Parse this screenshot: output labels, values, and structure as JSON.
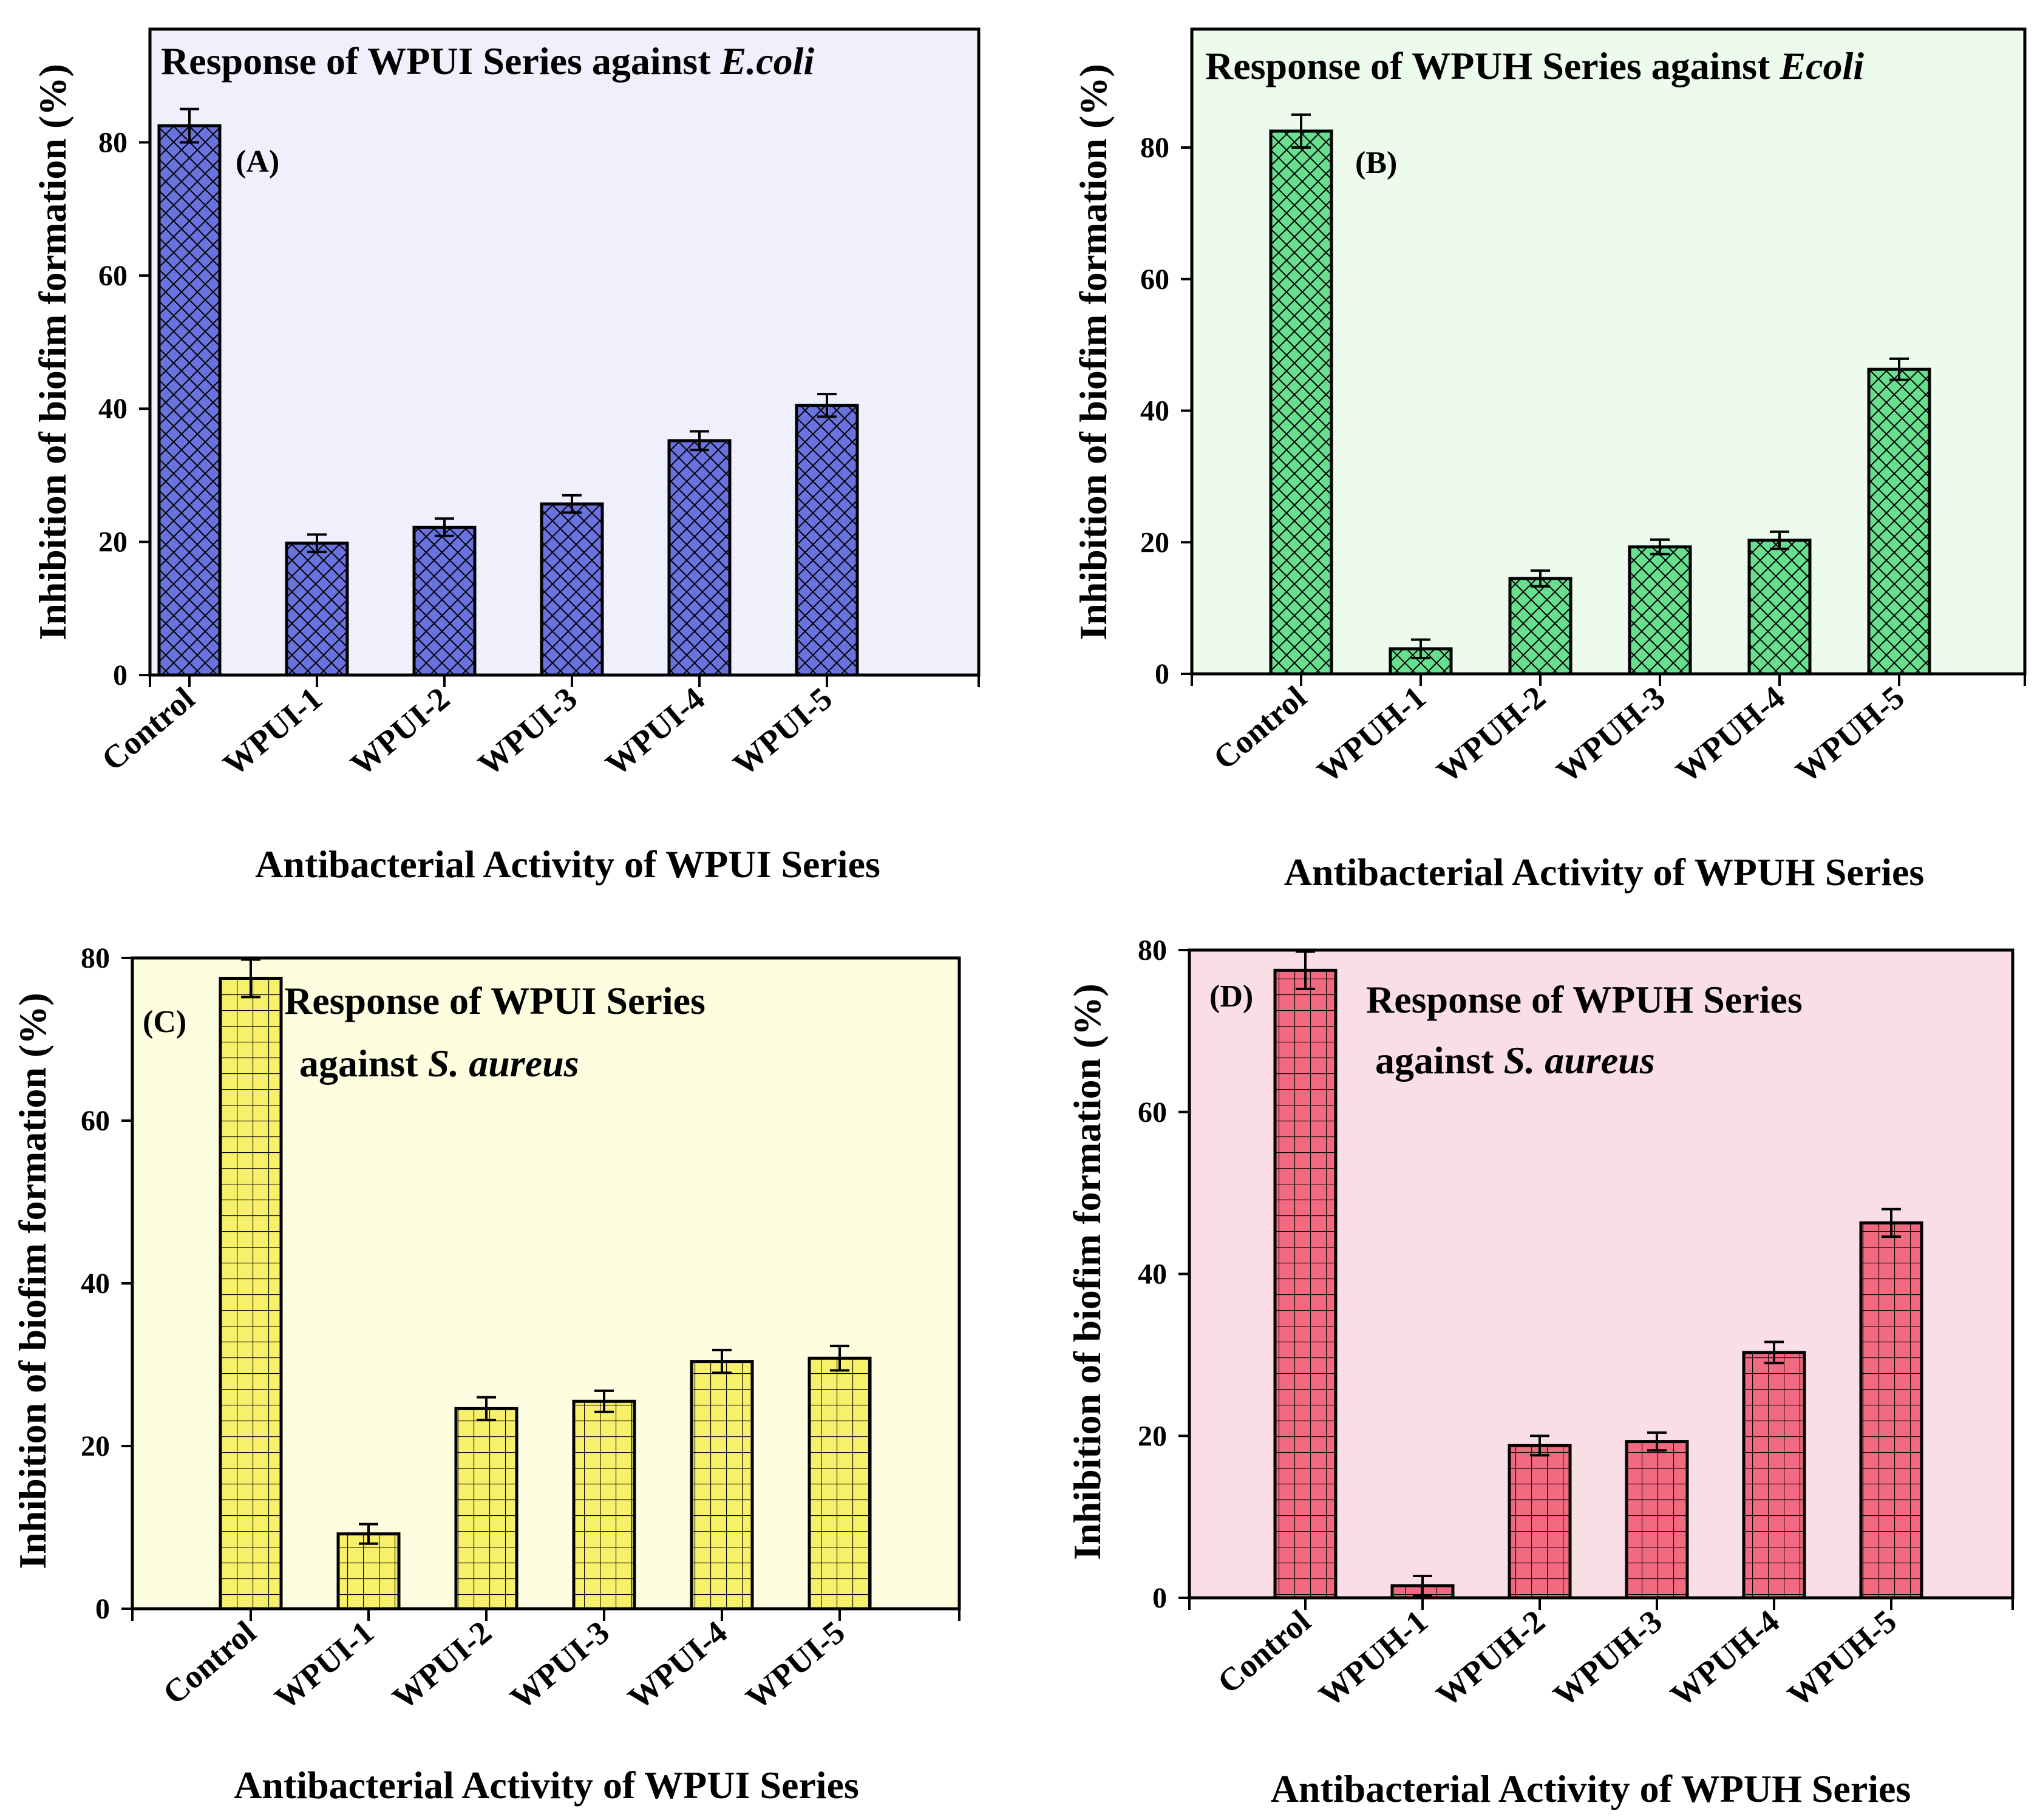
{
  "chart_data": [
    {
      "type": "bar",
      "panel": "(A)",
      "title": "Response of WPUI Series against ",
      "title_italic": "E.coli",
      "xlabel": "Antibacterial Activity of WPUI Series",
      "ylabel": "Inhibition of biofim formation (%)",
      "categories": [
        "Control",
        "WPUI-1",
        "WPUI-2",
        "WPUI-3",
        "WPUI-4",
        "WPUI-5"
      ],
      "values": [
        82.5,
        19.8,
        22.2,
        25.7,
        35.2,
        40.5
      ],
      "errors": [
        2.5,
        1.3,
        1.3,
        1.3,
        1.4,
        1.7
      ],
      "yticks": [
        0,
        20,
        40,
        60,
        80
      ],
      "ylim": [
        0,
        97
      ],
      "bar_color": "#6a72dd",
      "bg_color": "#f0f0fc",
      "pattern": "crosshatch"
    },
    {
      "type": "bar",
      "panel": "(B)",
      "title": "Response of WPUH Series against ",
      "title_italic": "Ecoli",
      "xlabel": "Antibacterial Activity of WPUH Series",
      "ylabel": "Inhibition of biofim formation (%)",
      "categories": [
        "Control",
        "WPUH-1",
        "WPUH-2",
        "WPUH-3",
        "WPUH-4",
        "WPUH-5"
      ],
      "values": [
        82.5,
        3.8,
        14.5,
        19.3,
        20.3,
        46.3
      ],
      "errors": [
        2.5,
        1.4,
        1.2,
        1.1,
        1.3,
        1.6
      ],
      "yticks": [
        0,
        20,
        40,
        60,
        80
      ],
      "ylim": [
        0,
        98
      ],
      "bar_color": "#67df8e",
      "bg_color": "#ecfbec",
      "pattern": "crosshatch"
    },
    {
      "type": "bar",
      "panel": "(C)",
      "title_lines": [
        "Response of WPUI Series",
        "against "
      ],
      "title_italic": "S. aureus",
      "xlabel": "Antibacterial Activity of WPUI Series",
      "ylabel": "Inhibition of biofim formation (%)",
      "categories": [
        "Control",
        "WPUI-1",
        "WPUI-2",
        "WPUI-3",
        "WPUI-4",
        "WPUI-5"
      ],
      "values": [
        77.5,
        9.2,
        24.6,
        25.5,
        30.4,
        30.8
      ],
      "errors": [
        2.3,
        1.2,
        1.4,
        1.3,
        1.4,
        1.5
      ],
      "yticks": [
        0,
        20,
        40,
        60,
        80
      ],
      "ylim": [
        0,
        80
      ],
      "bar_color": "#f7f06a",
      "bg_color": "#fdfde0",
      "pattern": "grid"
    },
    {
      "type": "bar",
      "panel": "(D)",
      "title_lines": [
        "Response of WPUH Series",
        "against "
      ],
      "title_italic": "S. aureus",
      "xlabel": "Antibacterial Activity of WPUH Series",
      "ylabel": "Inhibition of biofim formation (%)",
      "categories": [
        "Control",
        "WPUH-1",
        "WPUH-2",
        "WPUH-3",
        "WPUH-4",
        "WPUH-5"
      ],
      "values": [
        77.5,
        1.5,
        18.8,
        19.3,
        30.3,
        46.3
      ],
      "errors": [
        2.3,
        1.2,
        1.2,
        1.1,
        1.3,
        1.7
      ],
      "yticks": [
        0,
        20,
        40,
        60,
        80
      ],
      "ylim": [
        0,
        80
      ],
      "bar_color": "#f26a80",
      "bg_color": "#f9dfe5",
      "pattern": "grid"
    }
  ]
}
